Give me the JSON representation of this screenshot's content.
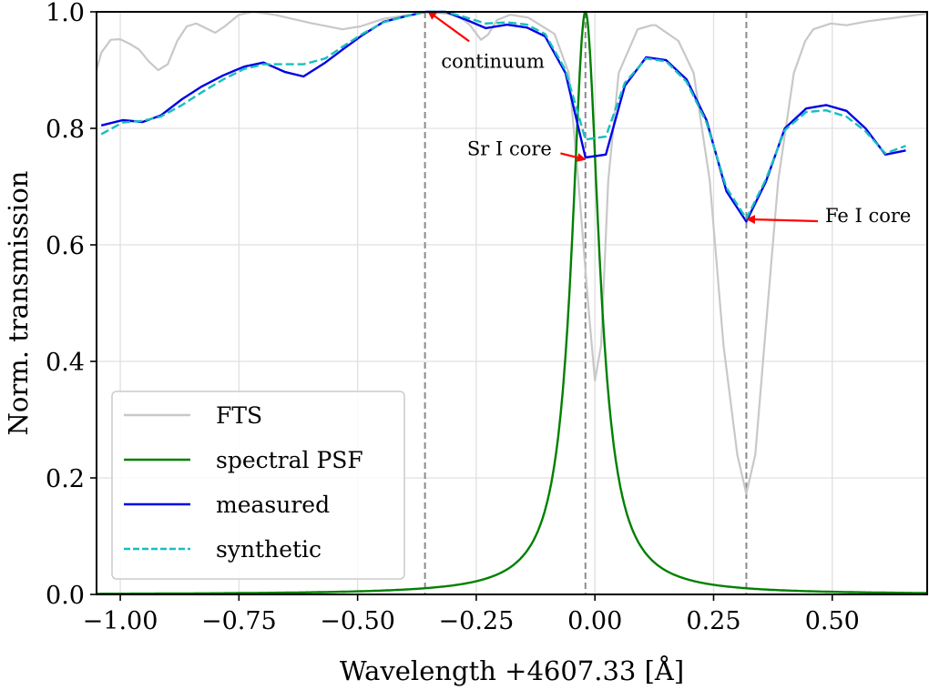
{
  "chart_data": {
    "type": "line",
    "title": "",
    "xlabel": "Wavelength +4607.33 [Å]",
    "ylabel": "Norm. transmission",
    "xlim": [
      -1.05,
      0.7
    ],
    "ylim": [
      0.0,
      1.0
    ],
    "grid": true,
    "xticks": [
      -1.0,
      -0.75,
      -0.5,
      -0.25,
      0.0,
      0.25,
      0.5
    ],
    "xtick_labels": [
      "−1.00",
      "−0.75",
      "−0.50",
      "−0.25",
      "0.00",
      "0.25",
      "0.50"
    ],
    "yticks": [
      0.0,
      0.2,
      0.4,
      0.6,
      0.8,
      1.0
    ],
    "ytick_labels": [
      "0.0",
      "0.2",
      "0.4",
      "0.6",
      "0.8",
      "1.0"
    ],
    "legend_position": "lower-left",
    "series": [
      {
        "name": "FTS",
        "color": "#c8c8c8",
        "style": "solid",
        "x": [
          -1.05,
          -1.04,
          -1.02,
          -1.0,
          -0.98,
          -0.96,
          -0.94,
          -0.92,
          -0.9,
          -0.88,
          -0.86,
          -0.84,
          -0.82,
          -0.8,
          -0.78,
          -0.75,
          -0.72,
          -0.675,
          -0.6,
          -0.532,
          -0.494,
          -0.446,
          -0.39,
          -0.35,
          -0.292,
          -0.264,
          -0.24,
          -0.225,
          -0.206,
          -0.178,
          -0.14,
          -0.085,
          -0.055,
          -0.035,
          -0.015,
          0.0,
          0.013,
          0.028,
          0.05,
          0.09,
          0.12,
          0.128,
          0.176,
          0.208,
          0.242,
          0.271,
          0.3,
          0.319,
          0.338,
          0.357,
          0.386,
          0.419,
          0.443,
          0.46,
          0.497,
          0.53,
          0.577,
          0.635,
          0.7
        ],
        "y": [
          0.9,
          0.93,
          0.952,
          0.953,
          0.945,
          0.935,
          0.915,
          0.9,
          0.91,
          0.95,
          0.975,
          0.98,
          0.972,
          0.964,
          0.975,
          0.995,
          1.0,
          0.995,
          0.981,
          0.97,
          0.975,
          0.988,
          0.995,
          1.0,
          0.995,
          0.978,
          0.952,
          0.961,
          0.986,
          0.995,
          0.99,
          0.962,
          0.895,
          0.71,
          0.505,
          0.367,
          0.428,
          0.71,
          0.895,
          0.97,
          0.977,
          0.977,
          0.95,
          0.895,
          0.71,
          0.427,
          0.24,
          0.173,
          0.24,
          0.427,
          0.71,
          0.895,
          0.95,
          0.97,
          0.98,
          0.977,
          0.984,
          0.99,
          0.997
        ]
      },
      {
        "name": "spectral PSF",
        "color": "#008000",
        "style": "solid",
        "profile": "lorentzian",
        "center": -0.02,
        "hwhm": 0.035,
        "peak": 1.0
      },
      {
        "name": "measured",
        "color": "#0000e6",
        "style": "solid",
        "x": [
          -1.04,
          -0.995,
          -0.953,
          -0.915,
          -0.87,
          -0.828,
          -0.783,
          -0.739,
          -0.698,
          -0.654,
          -0.614,
          -0.568,
          -0.532,
          -0.49,
          -0.445,
          -0.4,
          -0.357,
          -0.315,
          -0.27,
          -0.23,
          -0.185,
          -0.143,
          -0.105,
          -0.062,
          -0.02,
          0.023,
          0.063,
          0.108,
          0.15,
          0.193,
          0.235,
          0.277,
          0.319,
          0.36,
          0.4,
          0.445,
          0.487,
          0.53,
          0.57,
          0.612,
          0.655
        ],
        "y": [
          0.805,
          0.814,
          0.811,
          0.822,
          0.85,
          0.872,
          0.891,
          0.906,
          0.913,
          0.897,
          0.889,
          0.913,
          0.935,
          0.96,
          0.983,
          0.992,
          1.0,
          1.0,
          0.986,
          0.972,
          0.978,
          0.973,
          0.958,
          0.895,
          0.75,
          0.755,
          0.873,
          0.922,
          0.917,
          0.884,
          0.814,
          0.692,
          0.64,
          0.708,
          0.8,
          0.834,
          0.84,
          0.83,
          0.8,
          0.755,
          0.762
        ]
      },
      {
        "name": "synthetic",
        "color": "#17bfbf",
        "style": "dashed",
        "x": [
          -1.04,
          -0.995,
          -0.953,
          -0.915,
          -0.87,
          -0.828,
          -0.783,
          -0.739,
          -0.698,
          -0.654,
          -0.614,
          -0.568,
          -0.532,
          -0.49,
          -0.445,
          -0.4,
          -0.357,
          -0.315,
          -0.27,
          -0.23,
          -0.185,
          -0.143,
          -0.105,
          -0.062,
          -0.02,
          0.023,
          0.063,
          0.108,
          0.15,
          0.193,
          0.235,
          0.277,
          0.319,
          0.36,
          0.4,
          0.445,
          0.487,
          0.53,
          0.57,
          0.612,
          0.655
        ],
        "y": [
          0.79,
          0.81,
          0.813,
          0.82,
          0.84,
          0.862,
          0.884,
          0.902,
          0.91,
          0.91,
          0.91,
          0.92,
          0.94,
          0.962,
          0.982,
          0.992,
          1.0,
          1.0,
          0.99,
          0.98,
          0.982,
          0.978,
          0.962,
          0.9,
          0.781,
          0.786,
          0.878,
          0.92,
          0.915,
          0.88,
          0.81,
          0.698,
          0.645,
          0.712,
          0.797,
          0.828,
          0.831,
          0.82,
          0.795,
          0.757,
          0.77
        ]
      }
    ],
    "vertical_markers": [
      {
        "name": "continuum",
        "x": -0.358,
        "color": "#8c8c8c",
        "style": "dashed"
      },
      {
        "name": "Sr I core",
        "x": -0.02,
        "color": "#8c8c8c",
        "style": "dashed"
      },
      {
        "name": "Fe I core",
        "x": 0.319,
        "color": "#8c8c8c",
        "style": "dashed"
      }
    ],
    "annotations": [
      {
        "text": "continuum",
        "target": [
          -0.35,
          1.0
        ],
        "text_at": [
          -0.215,
          0.915
        ],
        "arrow_color": "#ff0000"
      },
      {
        "text": "Sr I core",
        "target": [
          -0.022,
          0.747
        ],
        "text_at": [
          -0.18,
          0.765
        ],
        "arrow_color": "#ff0000"
      },
      {
        "text": "Fe I core",
        "target": [
          0.322,
          0.644
        ],
        "text_at": [
          0.485,
          0.65
        ],
        "arrow_color": "#ff0000"
      }
    ]
  }
}
